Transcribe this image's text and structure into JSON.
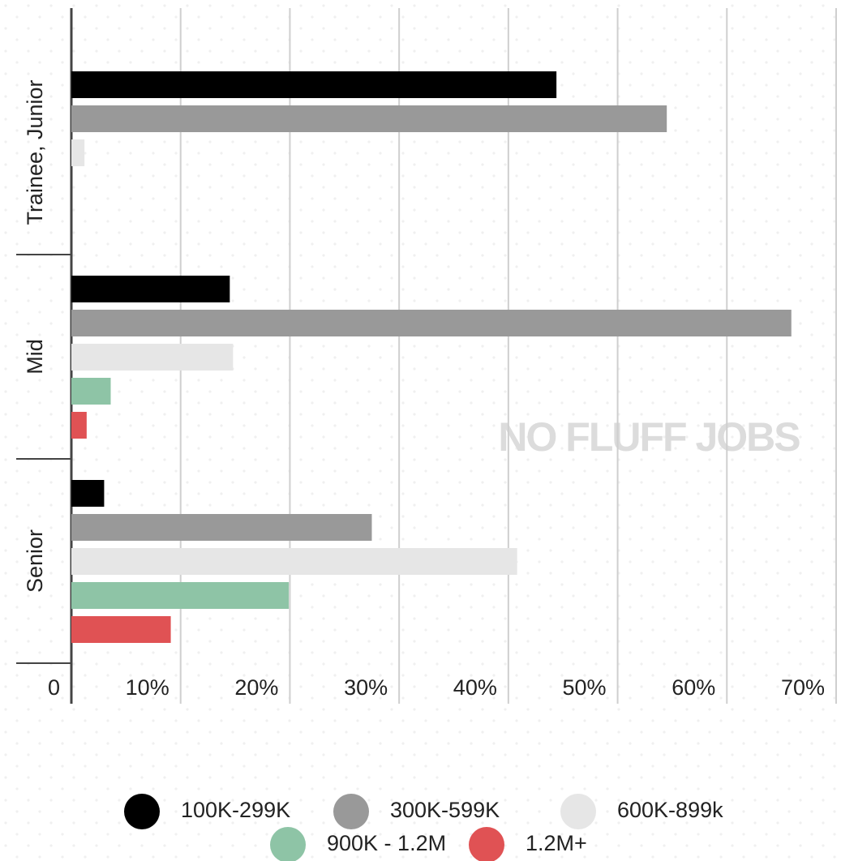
{
  "chart_data": {
    "type": "barh",
    "categories": [
      "Trainee, Junior",
      "Mid",
      "Senior"
    ],
    "series": [
      {
        "name": "100K-299K",
        "color": "#000000",
        "values": [
          44.4,
          14.5,
          3.0
        ]
      },
      {
        "name": "300K-599K",
        "color": "#999999",
        "values": [
          54.5,
          65.9,
          27.5
        ]
      },
      {
        "name": "600K-899k",
        "color": "#e6e6e6",
        "values": [
          1.2,
          14.8,
          40.8
        ]
      },
      {
        "name": "900K - 1.2M",
        "color": "#8ec4a6",
        "values": [
          null,
          3.6,
          19.9
        ]
      },
      {
        "name": "1.2M+",
        "color": "#e05254",
        "values": [
          null,
          1.4,
          9.1
        ]
      }
    ],
    "xlim": [
      0,
      70
    ],
    "xticks": [
      0,
      {
        "value": 10,
        "label": "10%"
      },
      {
        "value": 20,
        "label": "20%"
      },
      {
        "value": 30,
        "label": "30%"
      },
      {
        "value": 40,
        "label": "40%"
      },
      {
        "value": 50,
        "label": "50%"
      },
      {
        "value": 60,
        "label": "60%"
      },
      {
        "value": 70,
        "label": "70%"
      }
    ],
    "grid": true,
    "watermark": "NO FLUFF JOBS"
  }
}
